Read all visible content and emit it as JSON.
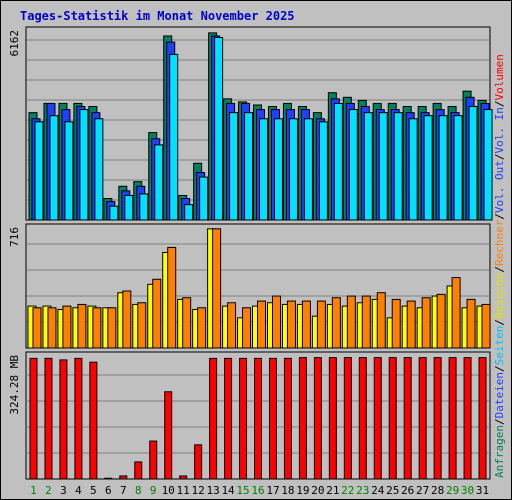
{
  "chart_data": [
    {
      "type": "bar",
      "title": "Tages-Statistik im Monat November 2025",
      "panel": "requests",
      "ymax_label": "6162",
      "ylim": [
        0,
        6162
      ],
      "categories": [
        "1",
        "2",
        "3",
        "4",
        "5",
        "6",
        "7",
        "8",
        "9",
        "10",
        "11",
        "12",
        "13",
        "14",
        "15",
        "16",
        "17",
        "18",
        "19",
        "20",
        "21",
        "22",
        "23",
        "24",
        "25",
        "26",
        "27",
        "28",
        "29",
        "30",
        "31"
      ],
      "weekend_days": [
        "1",
        "2",
        "8",
        "9",
        "15",
        "16",
        "22",
        "23",
        "29",
        "30"
      ],
      "legend": [
        "Anfragen",
        "Dateien",
        "Seiten"
      ],
      "series": [
        {
          "name": "Anfragen",
          "color": "#008060",
          "values": [
            3500,
            3800,
            3800,
            3800,
            3700,
            700,
            1100,
            1250,
            2850,
            6000,
            800,
            1850,
            6100,
            3950,
            3850,
            3750,
            3700,
            3800,
            3700,
            3500,
            4150,
            4000,
            3900,
            3800,
            3800,
            3700,
            3700,
            3800,
            3700,
            4200,
            3900
          ]
        },
        {
          "name": "Dateien",
          "color": "#2040ff",
          "values": [
            3300,
            3800,
            3600,
            3700,
            3500,
            600,
            950,
            1100,
            2650,
            5800,
            700,
            1550,
            6000,
            3800,
            3800,
            3600,
            3600,
            3600,
            3600,
            3300,
            3950,
            3800,
            3700,
            3600,
            3600,
            3500,
            3500,
            3600,
            3500,
            4000,
            3800
          ]
        },
        {
          "name": "Seiten",
          "color": "#00e0ff",
          "values": [
            3200,
            3400,
            3200,
            3600,
            3300,
            450,
            800,
            850,
            2450,
            5400,
            500,
            1400,
            5950,
            3500,
            3500,
            3300,
            3300,
            3300,
            3300,
            3200,
            3800,
            3600,
            3500,
            3500,
            3500,
            3300,
            3400,
            3400,
            3400,
            3700,
            3600
          ]
        }
      ]
    },
    {
      "type": "bar",
      "panel": "visits",
      "ymax_label": "716",
      "ylim": [
        0,
        716
      ],
      "categories": [
        "1",
        "2",
        "3",
        "4",
        "5",
        "6",
        "7",
        "8",
        "9",
        "10",
        "11",
        "12",
        "13",
        "14",
        "15",
        "16",
        "17",
        "18",
        "19",
        "20",
        "21",
        "22",
        "23",
        "24",
        "25",
        "26",
        "27",
        "28",
        "29",
        "30",
        "31"
      ],
      "legend": [
        "Besuche",
        "Rechner"
      ],
      "series": [
        {
          "name": "Besuche",
          "color": "#ffff00",
          "values": [
            250,
            250,
            230,
            240,
            250,
            240,
            330,
            260,
            380,
            570,
            290,
            230,
            711,
            250,
            180,
            250,
            270,
            260,
            260,
            190,
            260,
            250,
            270,
            290,
            180,
            250,
            240,
            310,
            370,
            240,
            250
          ]
        },
        {
          "name": "Rechner",
          "color": "#ff8000",
          "values": [
            240,
            240,
            250,
            260,
            240,
            240,
            340,
            270,
            410,
            600,
            300,
            240,
            711,
            270,
            240,
            280,
            310,
            280,
            280,
            280,
            300,
            310,
            310,
            330,
            290,
            280,
            300,
            320,
            420,
            290,
            260
          ]
        }
      ]
    },
    {
      "type": "bar",
      "panel": "volume",
      "ymax_label": "324.28 MB",
      "ylim": [
        0,
        324.28
      ],
      "categories": [
        "1",
        "2",
        "3",
        "4",
        "5",
        "6",
        "7",
        "8",
        "9",
        "10",
        "11",
        "12",
        "13",
        "14",
        "15",
        "16",
        "17",
        "18",
        "19",
        "20",
        "21",
        "22",
        "23",
        "24",
        "25",
        "26",
        "27",
        "28",
        "29",
        "30",
        "31"
      ],
      "legend": [
        "Volumen",
        "Vol. In",
        "Vol. Out"
      ],
      "series": [
        {
          "name": "Volumen",
          "color": "#ff0000",
          "values": [
            318,
            318,
            314,
            318,
            308,
            2,
            8,
            45,
            100,
            230,
            8,
            90,
            318,
            318,
            318,
            318,
            318,
            318,
            320,
            320,
            320,
            320,
            320,
            320,
            320,
            320,
            320,
            320,
            320,
            320,
            320
          ]
        }
      ]
    }
  ],
  "right_legend": [
    {
      "text": "Anfragen",
      "color": "#008060"
    },
    {
      "text": "/",
      "color": "#000000"
    },
    {
      "text": "Dateien",
      "color": "#2040ff"
    },
    {
      "text": "/",
      "color": "#000000"
    },
    {
      "text": "Seiten",
      "color": "#00c0ff"
    },
    {
      "text": "/",
      "color": "#000000"
    },
    {
      "text": "Besuche",
      "color": "#e0e000"
    },
    {
      "text": "/",
      "color": "#000000"
    },
    {
      "text": "Rechner",
      "color": "#ff8000"
    },
    {
      "text": "/",
      "color": "#000000"
    },
    {
      "text": "Vol. Out",
      "color": "#2040ff"
    },
    {
      "text": "/",
      "color": "#000000"
    },
    {
      "text": "Vol. In",
      "color": "#2040ff"
    },
    {
      "text": "/",
      "color": "#000000"
    },
    {
      "text": "Volumen",
      "color": "#ff0000"
    }
  ],
  "colors": {
    "background": "#c0c0c0",
    "grid": "#808080",
    "weekday_label": "#000000",
    "weekend_label": "#008000"
  }
}
